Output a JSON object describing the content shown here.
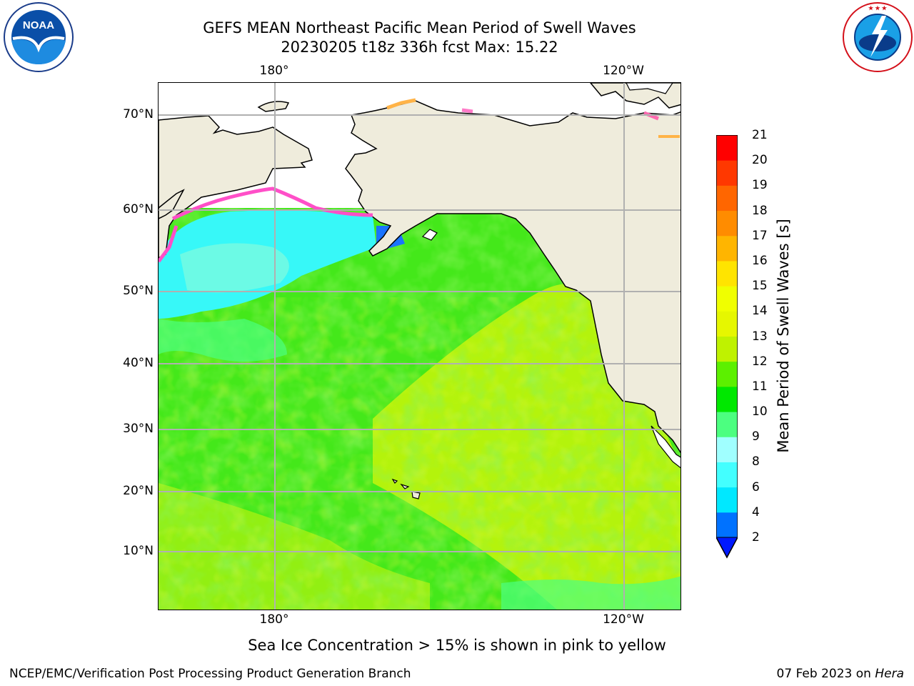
{
  "header": {
    "title_line1": "GEFS MEAN Northeast Pacific Mean Period of Swell Waves",
    "title_line2": "20230205 t18z 336h fcst   Max: 15.22"
  },
  "logos": {
    "noaa": {
      "text": "NOAA",
      "ring_text": "NATIONAL OCEANIC AND ATMOSPHERIC ADMINISTRATION · U.S. DEPARTMENT OF COMMERCE"
    },
    "nws": {
      "ring_text": "NATIONAL WEATHER SERVICE"
    }
  },
  "map": {
    "lon_labels_top": [
      "180°",
      "120°W"
    ],
    "lon_labels_bottom": [
      "180°",
      "120°W"
    ],
    "lat_labels": [
      "70°N",
      "60°N",
      "50°N",
      "40°N",
      "30°N",
      "20°N",
      "10°N"
    ],
    "land_color": "#efecdc",
    "ocean_colors": {
      "green": "#44e81a",
      "light_green": "#7ff21e",
      "yellow": "#c8f50a",
      "cyan": "#37f8f8",
      "ice_pink": "#ff4fc8"
    }
  },
  "colorbar": {
    "label": "Mean Period of Swell Waves [s]",
    "ticks": [
      "2",
      "4",
      "6",
      "8",
      "9",
      "10",
      "11",
      "12",
      "13",
      "14",
      "15",
      "16",
      "17",
      "18",
      "19",
      "20",
      "21"
    ],
    "colors": [
      "#0072ff",
      "#00e8ff",
      "#43ffff",
      "#a0ffff",
      "#4cff80",
      "#00e800",
      "#5cf000",
      "#bff200",
      "#e6f700",
      "#f0ff00",
      "#ffe400",
      "#ffb500",
      "#ff8c00",
      "#ff6600",
      "#ff3800",
      "#ff0000"
    ],
    "extend_low_color": "#0019ff"
  },
  "annotation": "Sea Ice Concentration > 15% is shown in pink to yellow",
  "footer": {
    "left": "NCEP/EMC/Verification Post Processing Product Generation Branch",
    "right_prefix": "07 Feb 2023 on ",
    "right_machine": "Hera"
  }
}
